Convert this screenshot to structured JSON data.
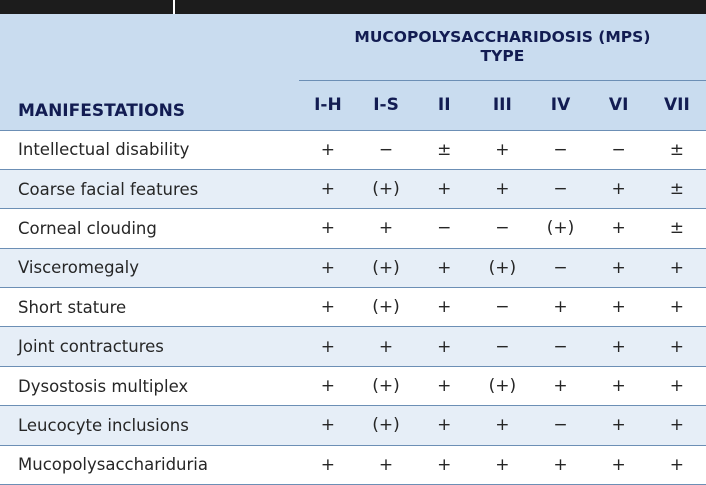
{
  "header": {
    "group_title_line1": "MUCOPOLYSACCHARIDOSIS (MPS)",
    "group_title_line2": "TYPE",
    "manifestations_label": "MANIFESTATIONS",
    "types": [
      "I-H",
      "I-S",
      "II",
      "III",
      "IV",
      "VI",
      "VII"
    ]
  },
  "rows": [
    {
      "manifestation": "Intellectual disability",
      "values": [
        "+",
        "−",
        "±",
        "+",
        "−",
        "−",
        "±"
      ]
    },
    {
      "manifestation": "Coarse facial features",
      "values": [
        "+",
        "(+)",
        "+",
        "+",
        "−",
        "+",
        "±"
      ]
    },
    {
      "manifestation": "Corneal clouding",
      "values": [
        "+",
        "+",
        "−",
        "−",
        "(+)",
        "+",
        "±"
      ]
    },
    {
      "manifestation": "Visceromegaly",
      "values": [
        "+",
        "(+)",
        "+",
        "(+)",
        "−",
        "+",
        "+"
      ]
    },
    {
      "manifestation": "Short stature",
      "values": [
        "+",
        "(+)",
        "+",
        "−",
        "+",
        "+",
        "+"
      ]
    },
    {
      "manifestation": "Joint contractures",
      "values": [
        "+",
        "+",
        "+",
        "−",
        "−",
        "+",
        "+"
      ]
    },
    {
      "manifestation": "Dysostosis multiplex",
      "values": [
        "+",
        "(+)",
        "+",
        "(+)",
        "+",
        "+",
        "+"
      ]
    },
    {
      "manifestation": "Leucocyte inclusions",
      "values": [
        "+",
        "(+)",
        "+",
        "+",
        "−",
        "+",
        "+"
      ]
    },
    {
      "manifestation": "Mucopolysacchariduria",
      "values": [
        "+",
        "+",
        "+",
        "+",
        "+",
        "+",
        "+"
      ]
    }
  ]
}
